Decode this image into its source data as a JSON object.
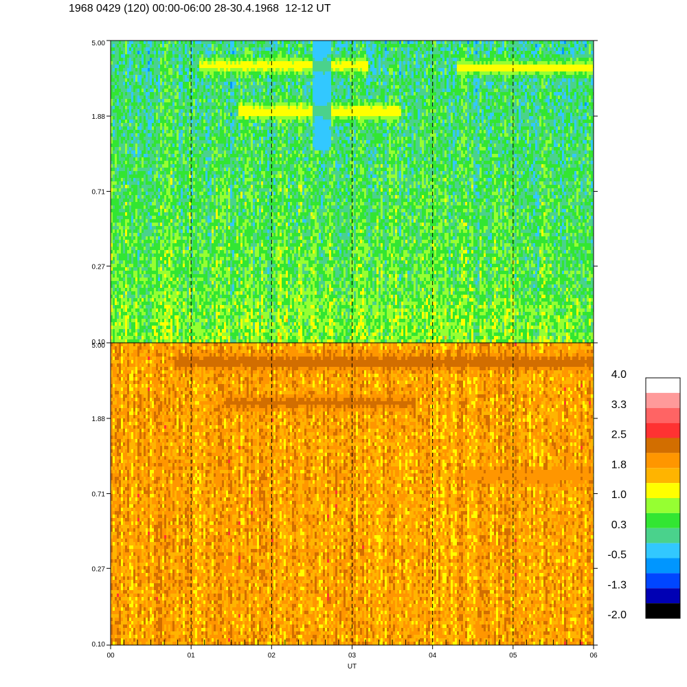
{
  "title": "1968 0429 (120) 00:00-06:00 28-30.4.1968  12-12 UT",
  "chart_data": {
    "type": "heatmap",
    "xlabel": "UT",
    "x_ticks": [
      "00",
      "01",
      "02",
      "03",
      "04",
      "05",
      "06"
    ],
    "xlim": [
      0,
      6
    ],
    "dashed_gridlines_at_hours": [
      1,
      2,
      3,
      4,
      5
    ],
    "panels": [
      {
        "name": "top",
        "y_scale": "log",
        "y_ticks": [
          "5.00",
          "1.88",
          "0.71",
          "0.27",
          "0.10"
        ],
        "ylim": [
          0.1,
          5.0
        ],
        "dominant_level": 0.6,
        "features": [
          {
            "kind": "band",
            "y_value": 3.6,
            "x_range": [
              1.1,
              3.2
            ],
            "level": 1.2
          },
          {
            "kind": "band",
            "y_value": 3.5,
            "x_range": [
              4.3,
              6.0
            ],
            "level": 1.1
          },
          {
            "kind": "band",
            "y_value": 2.0,
            "x_range": [
              1.6,
              3.6
            ],
            "level": 1.3
          },
          {
            "kind": "dark_column",
            "x_range": [
              2.5,
              2.75
            ],
            "y_range": [
              1.2,
              5.0
            ],
            "level": -0.5
          }
        ]
      },
      {
        "name": "bottom",
        "y_scale": "log",
        "y_ticks": [
          "5.00",
          "1.88",
          "0.71",
          "0.27",
          "0.10"
        ],
        "ylim": [
          0.1,
          5.0
        ],
        "dominant_level": 1.8,
        "features": [
          {
            "kind": "band",
            "y_value": 3.9,
            "x_range": [
              0.8,
              6.0
            ],
            "level": 2.3
          },
          {
            "kind": "band",
            "y_value": 2.3,
            "x_range": [
              1.4,
              3.8
            ],
            "level": 2.2
          },
          {
            "kind": "band",
            "y_value": 0.9,
            "x_range": [
              4.4,
              6.0
            ],
            "level": 2.1
          }
        ]
      }
    ],
    "colorbar": {
      "labels": [
        "4.0",
        "3.3",
        "2.5",
        "1.8",
        "1.0",
        "0.3",
        "-0.5",
        "-1.3",
        "-2.0"
      ],
      "range": [
        -2.0,
        4.0
      ],
      "colors_top_to_bottom": [
        "#ffffff",
        "#ff9a9a",
        "#ff6464",
        "#ff3232",
        "#d26e00",
        "#ff9600",
        "#ffb400",
        "#ffff00",
        "#96ff32",
        "#32e632",
        "#4ad28c",
        "#32c8ff",
        "#0096ff",
        "#0046ff",
        "#0000b4",
        "#000000"
      ]
    }
  }
}
